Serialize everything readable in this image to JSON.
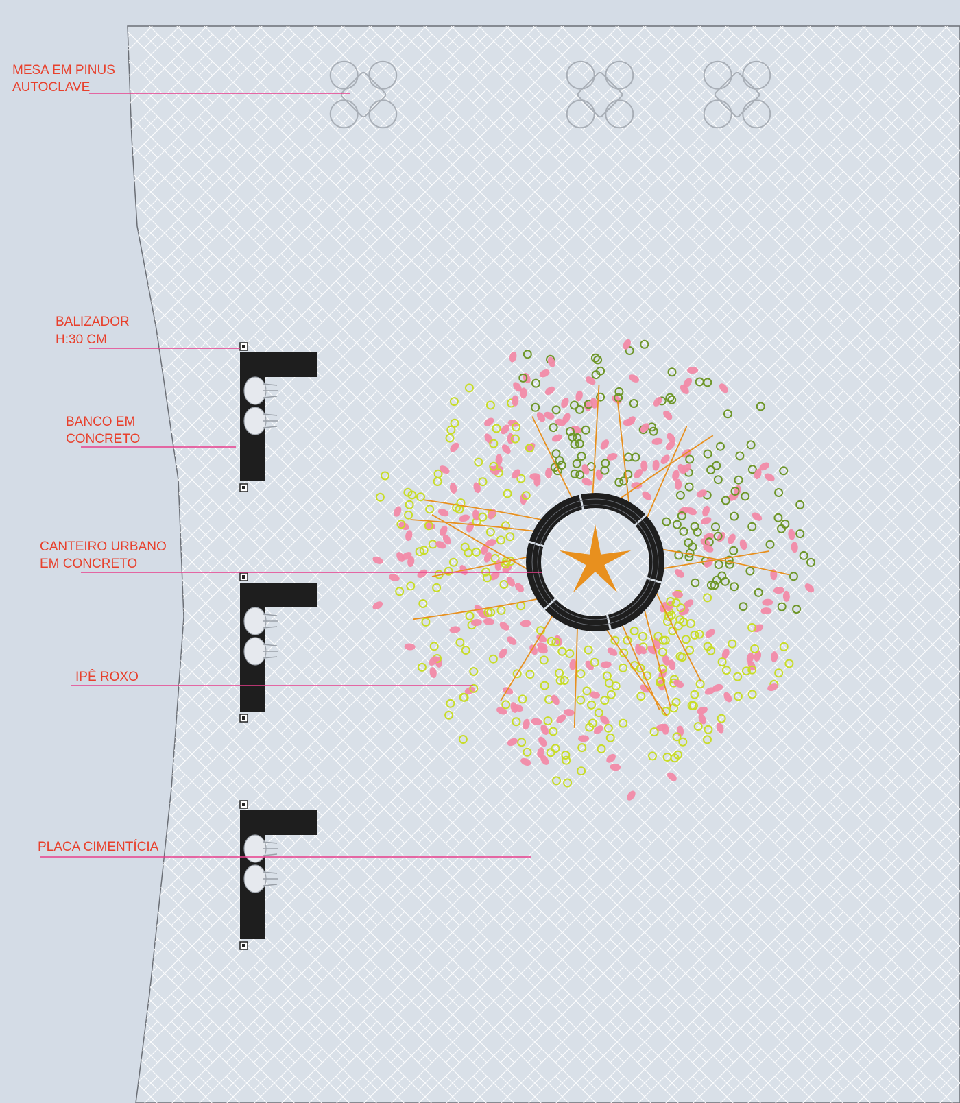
{
  "labels": {
    "mesa_line1": "MESA EM PINUS",
    "mesa_line2": "AUTOCLAVE",
    "balizador_line1": "BALIZADOR",
    "balizador_line2": "H:30 CM",
    "banco_line1": "BANCO EM",
    "banco_line2": "CONCRETO",
    "canteiro_line1": "CANTEIRO URBANO",
    "canteiro_line2": "EM CONCRETO",
    "ipe": "IPÊ ROXO",
    "placa": "PLACA CIMENTÍCIA"
  },
  "colors": {
    "background": "#d4dce6",
    "paving_fill": "#d9e0e8",
    "paving_pattern": "#ffffff",
    "label_text": "#e8402c",
    "leader_line": "#e83e8c",
    "bench": "#1e1e1e",
    "tree_trunk": "#e8901e",
    "flower_pink": "#f28aa8",
    "leaf_light": "#c8dc28",
    "leaf_dark": "#6e9628",
    "table_outline": "#a8aeb6"
  },
  "icons": {
    "table": "table-with-chairs-icon",
    "bench": "l-shaped-bench-icon",
    "bollard": "bollard-icon",
    "planter": "round-planter-icon",
    "tree": "ipe-roxo-tree-icon"
  }
}
